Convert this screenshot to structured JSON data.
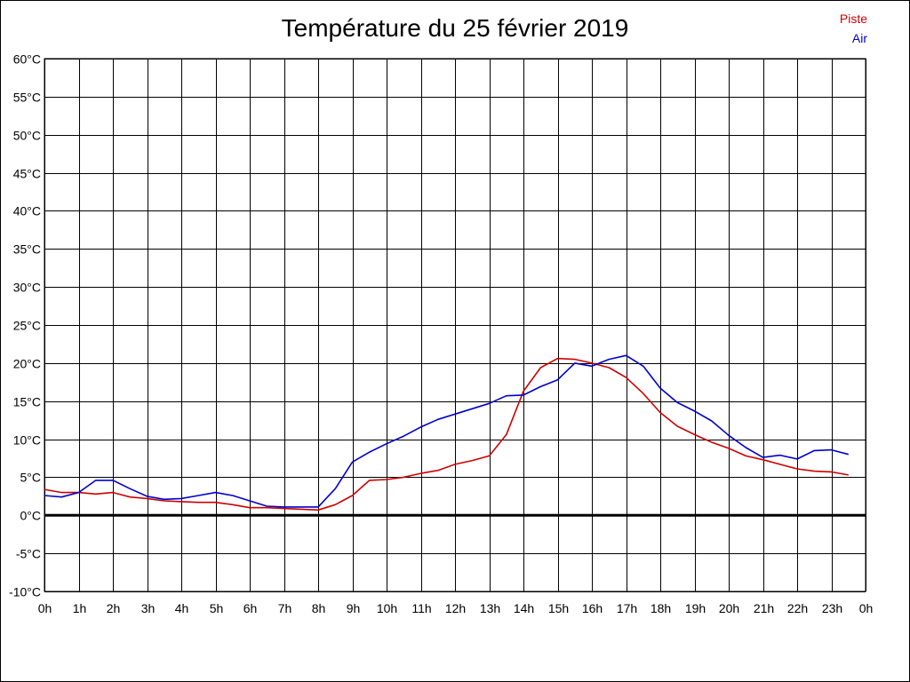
{
  "chart_data": {
    "type": "line",
    "title": "Température du 25 février 2019",
    "ylim": [
      -10,
      60
    ],
    "y_ticks": [
      60,
      55,
      50,
      45,
      40,
      35,
      30,
      25,
      20,
      15,
      10,
      5,
      0,
      -5,
      -10
    ],
    "y_tick_labels": [
      "60°C",
      "55°C",
      "50°C",
      "45°C",
      "40°C",
      "35°C",
      "30°C",
      "25°C",
      "20°C",
      "15°C",
      "10°C",
      "5°C",
      "0°C",
      "-5°C",
      "-10°C"
    ],
    "x_tick_labels": [
      "0h",
      "1h",
      "2h",
      "3h",
      "4h",
      "5h",
      "6h",
      "7h",
      "8h",
      "9h",
      "10h",
      "11h",
      "12h",
      "13h",
      "14h",
      "15h",
      "16h",
      "17h",
      "18h",
      "19h",
      "20h",
      "21h",
      "22h",
      "23h",
      "0h"
    ],
    "grid": true,
    "zero_line": true,
    "legend_position": "top-right",
    "series": [
      {
        "name": "Piste",
        "color": "#cc0000",
        "x": [
          0,
          0.5,
          1,
          1.5,
          2,
          2.5,
          3,
          3.5,
          4,
          4.5,
          5,
          5.5,
          6,
          6.5,
          7,
          7.5,
          8,
          8.5,
          9,
          9.5,
          10,
          10.5,
          11,
          11.5,
          12,
          12.5,
          13,
          13.5,
          14,
          14.5,
          15,
          15.5,
          16,
          16.5,
          17,
          17.5,
          18,
          18.5,
          19,
          19.5,
          20,
          20.5,
          21,
          21.5,
          22,
          22.5,
          23,
          23.5
        ],
        "values": [
          3.4,
          3.0,
          3.0,
          2.8,
          3.0,
          2.4,
          2.2,
          1.9,
          1.8,
          1.7,
          1.7,
          1.4,
          1.0,
          1.0,
          0.9,
          0.8,
          0.7,
          1.4,
          2.6,
          4.6,
          4.7,
          5.0,
          5.5,
          5.9,
          6.7,
          7.2,
          7.8,
          10.6,
          16.3,
          19.4,
          20.6,
          20.5,
          20.0,
          19.4,
          18.1,
          16.0,
          13.5,
          11.7,
          10.6,
          9.6,
          8.8,
          7.8,
          7.3,
          6.7,
          6.1,
          5.8,
          5.7,
          5.3
        ]
      },
      {
        "name": "Air",
        "color": "#0000cc",
        "x": [
          0,
          0.5,
          1,
          1.5,
          2,
          2.5,
          3,
          3.5,
          4,
          4.5,
          5,
          5.5,
          6,
          6.5,
          7,
          7.5,
          8,
          8.5,
          9,
          9.5,
          10,
          10.5,
          11,
          11.5,
          12,
          12.5,
          13,
          13.5,
          14,
          14.5,
          15,
          15.5,
          16,
          16.5,
          17,
          17.5,
          18,
          18.5,
          19,
          19.5,
          20,
          20.5,
          21,
          21.5,
          22,
          22.5,
          23,
          23.5
        ],
        "values": [
          2.6,
          2.4,
          3.0,
          4.6,
          4.6,
          3.5,
          2.5,
          2.1,
          2.2,
          2.6,
          3.0,
          2.6,
          1.9,
          1.2,
          1.1,
          1.1,
          1.1,
          3.5,
          7.0,
          8.3,
          9.4,
          10.4,
          11.6,
          12.6,
          13.3,
          14.0,
          14.7,
          15.7,
          15.8,
          16.9,
          17.8,
          20.0,
          19.6,
          20.5,
          21.0,
          19.6,
          16.7,
          14.8,
          13.7,
          12.4,
          10.5,
          8.9,
          7.6,
          7.9,
          7.4,
          8.5,
          8.6,
          8.0
        ]
      }
    ]
  }
}
